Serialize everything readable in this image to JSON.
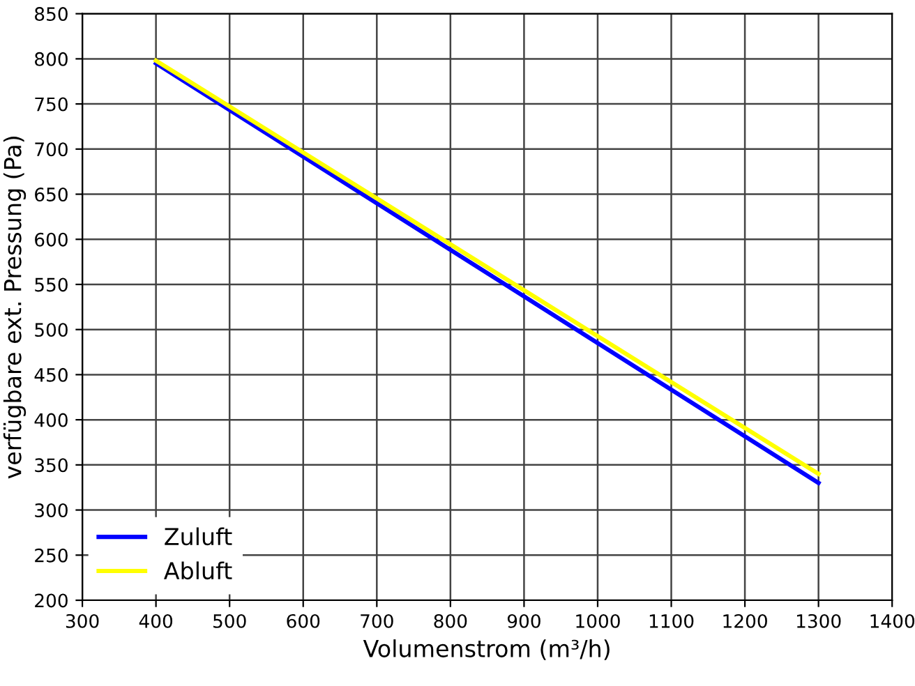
{
  "chart_data": {
    "type": "line",
    "xlabel": "Volumenstrom (m³/h)",
    "ylabel": "verfügbare ext. Pressung (Pa)",
    "series": [
      {
        "name": "Zuluft",
        "color": "#0000ff",
        "values": [
          795,
          330
        ]
      },
      {
        "name": "Abluft",
        "color": "#ffff00",
        "values": [
          798,
          340
        ]
      }
    ],
    "x": [
      400,
      1300
    ],
    "xlim": [
      300,
      1400
    ],
    "xticks": [
      300,
      400,
      500,
      600,
      700,
      800,
      900,
      1000,
      1100,
      1200,
      1300,
      1400
    ],
    "ylim": [
      200,
      850
    ],
    "yticks": [
      200,
      250,
      300,
      350,
      400,
      450,
      500,
      550,
      600,
      650,
      700,
      750,
      800,
      850
    ],
    "grid": true,
    "legend": "bottom left",
    "marker": "none",
    "line_style": "solid"
  }
}
